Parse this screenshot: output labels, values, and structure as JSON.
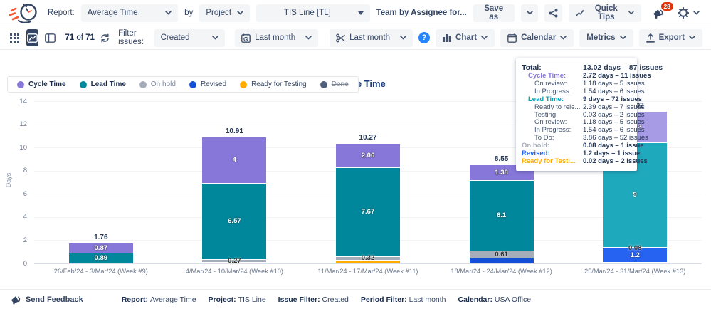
{
  "header": {
    "report_label": "Report:",
    "report_value": "Average Time",
    "by_label": "by",
    "group_value": "Project",
    "project_value": "TIS Line [TL]",
    "team_text": "Team by Assignee for...",
    "save_as_label": "Save as",
    "quick_tips_label": "Quick Tips",
    "notification_count": "28"
  },
  "toolbar": {
    "count_current": "71",
    "count_of": "of",
    "count_total": "71",
    "filter_label": "Filter issues:",
    "filter_value": "Created",
    "period_value": "Last month",
    "sprint_value": "Last month",
    "chart_label": "Chart",
    "calendar_label": "Calendar",
    "metrics_label": "Metrics",
    "export_label": "Export"
  },
  "colors": {
    "cycle": "#8777D9",
    "lead": "#00879B",
    "onhold": "#A5ADBA",
    "revised": "#1450D6",
    "ready": "#FFAB00",
    "done": "#505F79",
    "accent_blue": "#2684FF",
    "badge_red": "#DE350B",
    "selected_nav": "#344563"
  },
  "colors_hover": {
    "cycle": "#A79BE5",
    "lead": "#1FA9BC",
    "onhold": "#B0B7C3",
    "revised": "#2563F0",
    "ready": "#FFC400"
  },
  "legend": {
    "items": [
      {
        "label": "Cycle Time",
        "key": "cycle",
        "color": "#8777D9",
        "bold": true,
        "muted": false,
        "struck": false
      },
      {
        "label": "Lead Time",
        "key": "lead",
        "color": "#00879B",
        "bold": true,
        "muted": false,
        "struck": false
      },
      {
        "label": "On hold",
        "key": "onhold",
        "color": "#A5ADBA",
        "bold": false,
        "muted": true,
        "struck": false
      },
      {
        "label": "Revised",
        "key": "revised",
        "color": "#1450D6",
        "bold": false,
        "muted": false,
        "struck": false
      },
      {
        "label": "Ready for Testing",
        "key": "ready",
        "color": "#FFAB00",
        "bold": false,
        "muted": false,
        "struck": false
      },
      {
        "label": "Done",
        "key": "done",
        "color": "#505F79",
        "bold": false,
        "muted": true,
        "struck": true
      }
    ]
  },
  "chart_data": {
    "type": "bar",
    "stacked": true,
    "title": "Average Time",
    "xlabel": "",
    "ylabel": "Days",
    "ylim": [
      0,
      14
    ],
    "yticks": [
      0,
      2,
      4,
      6,
      8,
      10,
      12,
      14
    ],
    "grid": true,
    "legend_position": "top-left",
    "categories": [
      "26/Feb/24 - 3/Mar/24 (Week #9)",
      "4/Mar/24 - 10/Mar/24 (Week #10)",
      "11/Mar/24 - 17/Mar/24 (Week #11)",
      "18/Mar/24 - 24/Mar/24 (Week #12)",
      "25/Mar/24 - 31/Mar/24 (Week #13)"
    ],
    "series": [
      {
        "name": "Cycle Time",
        "values": [
          0.87,
          4,
          2.06,
          1.38,
          2.72
        ]
      },
      {
        "name": "Lead Time",
        "values": [
          0.89,
          6.57,
          7.67,
          6.1,
          9
        ]
      },
      {
        "name": "On hold",
        "values": [
          0,
          0.27,
          0.32,
          0.61,
          0.08
        ]
      },
      {
        "name": "Revised",
        "values": [
          0,
          0,
          0,
          0.46,
          1.2
        ]
      },
      {
        "name": "Ready for Testing",
        "values": [
          0,
          0.07,
          0.22,
          0,
          0.02
        ]
      }
    ],
    "totals": [
      1.76,
      10.91,
      10.27,
      8.55,
      13.02
    ],
    "bars": [
      {
        "category": "26/Feb/24 - 3/Mar/24 (Week #9)",
        "total": "1.76",
        "hover": false,
        "segments": [
          {
            "key": "lead",
            "value": 0.89,
            "label": "0.89"
          },
          {
            "key": "cycle",
            "value": 0.87,
            "label": "0.87"
          }
        ]
      },
      {
        "category": "4/Mar/24 - 10/Mar/24 (Week #10)",
        "total": "10.91",
        "hover": false,
        "segments": [
          {
            "key": "ready",
            "value": 0.07,
            "label": ""
          },
          {
            "key": "onhold",
            "value": 0.27,
            "label": "0.27"
          },
          {
            "key": "lead",
            "value": 6.57,
            "label": "6.57"
          },
          {
            "key": "cycle",
            "value": 4,
            "label": "4"
          }
        ]
      },
      {
        "category": "11/Mar/24 - 17/Mar/24 (Week #11)",
        "total": "10.27",
        "hover": false,
        "segments": [
          {
            "key": "ready",
            "value": 0.22,
            "label": ""
          },
          {
            "key": "onhold",
            "value": 0.32,
            "label": "0.32"
          },
          {
            "key": "lead",
            "value": 7.67,
            "label": "7.67"
          },
          {
            "key": "cycle",
            "value": 2.06,
            "label": "2.06"
          }
        ]
      },
      {
        "category": "18/Mar/24 - 24/Mar/24 (Week #12)",
        "total": "8.55",
        "hover": false,
        "segments": [
          {
            "key": "revised",
            "value": 0.46,
            "label": ""
          },
          {
            "key": "onhold",
            "value": 0.61,
            "label": "0.61"
          },
          {
            "key": "lead",
            "value": 6.1,
            "label": "6.1"
          },
          {
            "key": "cycle",
            "value": 1.38,
            "label": "1.38"
          }
        ]
      },
      {
        "category": "25/Mar/24 - 31/Mar/24 (Week #13)",
        "total": "13.02",
        "hover": true,
        "segments": [
          {
            "key": "ready",
            "value": 0.02,
            "label": ""
          },
          {
            "key": "revised",
            "value": 1.2,
            "label": "1.2"
          },
          {
            "key": "onhold",
            "value": 0.08,
            "label": "0.08"
          },
          {
            "key": "lead",
            "value": 9,
            "label": "9"
          },
          {
            "key": "cycle",
            "value": 2.72,
            "label": "2.72"
          }
        ]
      }
    ]
  },
  "tooltip": {
    "rows": [
      {
        "label": "Total:",
        "value": "13.02 days – 87 issues",
        "indent": 0,
        "color": "",
        "bold": true
      },
      {
        "label": "Cycle Time:",
        "value": "2.72 days – 11 issues",
        "indent": 1,
        "color": "#8777D9",
        "bold": true
      },
      {
        "label": "On review:",
        "value": "1.18 days – 5 issues",
        "indent": 2,
        "color": "",
        "bold": false
      },
      {
        "label": "In Progress:",
        "value": "1.54 days – 6 issues",
        "indent": 2,
        "color": "",
        "bold": false
      },
      {
        "label": "Lead Time:",
        "value": "9 days – 72 issues",
        "indent": 1,
        "color": "#00A3BF",
        "bold": true
      },
      {
        "label": "Ready to rele...",
        "value": "2.39 days – 7 issues",
        "indent": 2,
        "color": "",
        "bold": false
      },
      {
        "label": "Testing:",
        "value": "0.03 days – 2 issues",
        "indent": 2,
        "color": "",
        "bold": false
      },
      {
        "label": "On review:",
        "value": "1.18 days – 5 issues",
        "indent": 2,
        "color": "",
        "bold": false
      },
      {
        "label": "In Progress:",
        "value": "1.54 days – 6 issues",
        "indent": 2,
        "color": "",
        "bold": false
      },
      {
        "label": "To Do:",
        "value": "3.86 days – 52 issues",
        "indent": 2,
        "color": "",
        "bold": false
      },
      {
        "label": "On hold:",
        "value": "0.08 days – 1 issue",
        "indent": 0,
        "color": "#A5ADBA",
        "bold": true
      },
      {
        "label": "Revised:",
        "value": "1.2 days – 1 issue",
        "indent": 0,
        "color": "#2563F0",
        "bold": true
      },
      {
        "label": "Ready for Testi...",
        "value": "0.02 days – 2 issues",
        "indent": 0,
        "color": "#FFAB00",
        "bold": true
      }
    ]
  },
  "footer": {
    "send_feedback": "Send Feedback",
    "items": [
      {
        "label": "Report:",
        "value": "Average Time"
      },
      {
        "label": "Project:",
        "value": "TIS Line"
      },
      {
        "label": "Issue Filter:",
        "value": "Created"
      },
      {
        "label": "Period Filter:",
        "value": "Last month"
      },
      {
        "label": "Calendar:",
        "value": "USA Office"
      }
    ]
  }
}
